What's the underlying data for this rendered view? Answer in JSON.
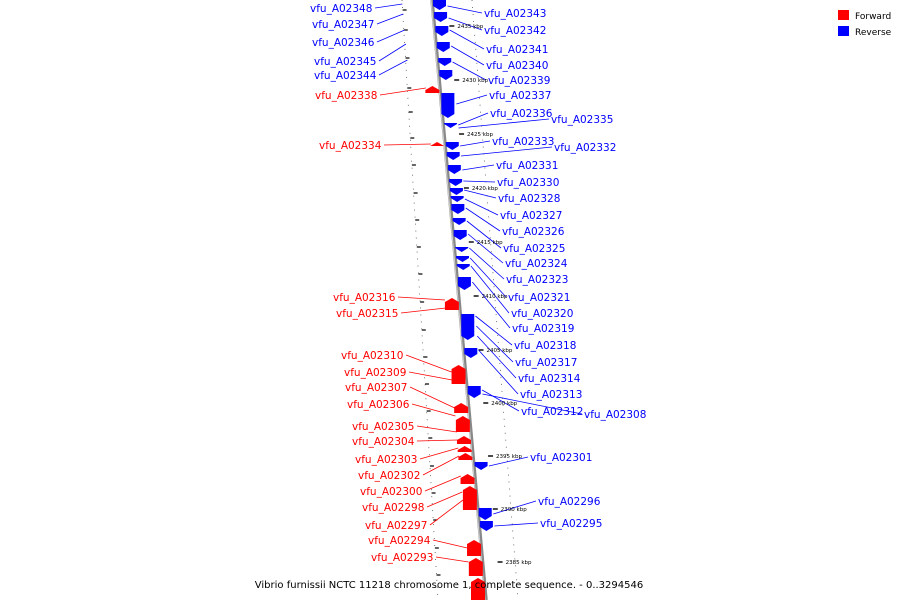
{
  "caption": "Vibrio furnissii NCTC 11218 chromosome 1, complete sequence. - 0..3294546",
  "legend": [
    {
      "label": "Forward",
      "color": "#ff0000"
    },
    {
      "label": "Reverse",
      "color": "#0000ff"
    }
  ],
  "colors": {
    "forward": "#ff0000",
    "reverse": "#0000ff",
    "backbone": "#888888"
  },
  "ticks": [
    "2435 kbp",
    "2430 kbp",
    "2425 kbp",
    "2420 kbp",
    "2415 kbp",
    "2410 kbp",
    "2405 kbp",
    "2400 kbp",
    "2395 kbp",
    "2390 kbp",
    "2385 kbp"
  ],
  "forward_genes": [
    "vfu_A02338",
    "vfu_A02334",
    "vfu_A02316",
    "vfu_A02315",
    "vfu_A02310",
    "vfu_A02309",
    "vfu_A02307",
    "vfu_A02306",
    "vfu_A02305",
    "vfu_A02304",
    "vfu_A02303",
    "vfu_A02302",
    "vfu_A02300",
    "vfu_A02298",
    "vfu_A02297",
    "vfu_A02294",
    "vfu_A02293"
  ],
  "reverse_left_genes": [
    "vfu_A02348",
    "vfu_A02347",
    "vfu_A02346",
    "vfu_A02345",
    "vfu_A02344"
  ],
  "reverse_right_genes": [
    "vfu_A02343",
    "vfu_A02342",
    "vfu_A02341",
    "vfu_A02340",
    "vfu_A02339",
    "vfu_A02337",
    "vfu_A02336",
    "vfu_A02335",
    "vfu_A02333",
    "vfu_A02332",
    "vfu_A02331",
    "vfu_A02330",
    "vfu_A02328",
    "vfu_A02327",
    "vfu_A02326",
    "vfu_A02325",
    "vfu_A02324",
    "vfu_A02323",
    "vfu_A02321",
    "vfu_A02320",
    "vfu_A02319",
    "vfu_A02318",
    "vfu_A02317",
    "vfu_A02314",
    "vfu_A02313",
    "vfu_A02312",
    "vfu_A02308",
    "vfu_A02301",
    "vfu_A02296",
    "vfu_A02295"
  ]
}
